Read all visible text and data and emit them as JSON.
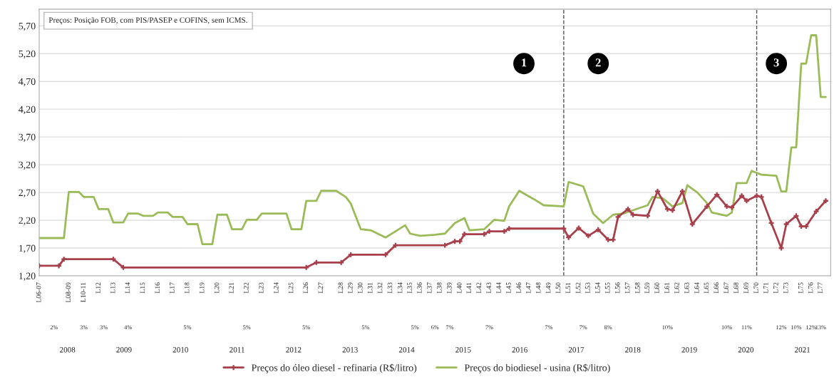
{
  "chart_data": {
    "type": "line",
    "xlim": [
      "2008-01",
      "2021-05"
    ],
    "ylim": [
      1.2,
      6.0
    ],
    "yticks": [
      {
        "value": 1.2,
        "label": "1,20"
      },
      {
        "value": 1.7,
        "label": "1,70"
      },
      {
        "value": 2.2,
        "label": "2,20"
      },
      {
        "value": 2.7,
        "label": "2,70"
      },
      {
        "value": 3.2,
        "label": "3,20"
      },
      {
        "value": 3.7,
        "label": "3,70"
      },
      {
        "value": 4.2,
        "label": "4,20"
      },
      {
        "value": 4.7,
        "label": "4,70"
      },
      {
        "value": 5.2,
        "label": "5,20"
      },
      {
        "value": 5.7,
        "label": "5,70"
      }
    ],
    "xticks": [
      {
        "value": "2008-01",
        "label": "L06-07"
      },
      {
        "value": "2008-07",
        "label": "L08-09"
      },
      {
        "value": "2008-10",
        "label": "L10-11"
      },
      {
        "value": "2009-01",
        "label": "L12"
      },
      {
        "value": "2009-04",
        "label": "L13"
      },
      {
        "value": "2009-07",
        "label": "L14"
      },
      {
        "value": "2009-10",
        "label": "L15"
      },
      {
        "value": "2010-01",
        "label": "L16"
      },
      {
        "value": "2010-04",
        "label": "L17"
      },
      {
        "value": "2010-07",
        "label": "L18"
      },
      {
        "value": "2010-10",
        "label": "L19"
      },
      {
        "value": "2011-01",
        "label": "L20"
      },
      {
        "value": "2011-04",
        "label": "L21"
      },
      {
        "value": "2011-07",
        "label": "L22"
      },
      {
        "value": "2011-10",
        "label": "L23"
      },
      {
        "value": "2012-01",
        "label": "L24"
      },
      {
        "value": "2012-04",
        "label": "L25"
      },
      {
        "value": "2012-07",
        "label": "L26"
      },
      {
        "value": "2012-10",
        "label": "L27"
      },
      {
        "value": "2013-02",
        "label": "L28"
      },
      {
        "value": "2013-04",
        "label": "L29"
      },
      {
        "value": "2013-06",
        "label": "L30"
      },
      {
        "value": "2013-08",
        "label": "L31"
      },
      {
        "value": "2013-10",
        "label": "L32"
      },
      {
        "value": "2013-12",
        "label": "L33"
      },
      {
        "value": "2014-02",
        "label": "L34"
      },
      {
        "value": "2014-04",
        "label": "L35"
      },
      {
        "value": "2014-06",
        "label": "L36"
      },
      {
        "value": "2014-08",
        "label": "L37"
      },
      {
        "value": "2014-10",
        "label": "L38"
      },
      {
        "value": "2014-12",
        "label": "L39"
      },
      {
        "value": "2015-02",
        "label": "L40"
      },
      {
        "value": "2015-04",
        "label": "L41"
      },
      {
        "value": "2015-06",
        "label": "L42"
      },
      {
        "value": "2015-08",
        "label": "L43"
      },
      {
        "value": "2015-10",
        "label": "L44"
      },
      {
        "value": "2015-12",
        "label": "L45"
      },
      {
        "value": "2016-02",
        "label": "L46"
      },
      {
        "value": "2016-04",
        "label": "L47"
      },
      {
        "value": "2016-06",
        "label": "L48"
      },
      {
        "value": "2016-08",
        "label": "L49"
      },
      {
        "value": "2016-10",
        "label": "L50"
      },
      {
        "value": "2016-12",
        "label": "L51"
      },
      {
        "value": "2017-02",
        "label": "L52"
      },
      {
        "value": "2017-04",
        "label": "L53"
      },
      {
        "value": "2017-06",
        "label": "L54"
      },
      {
        "value": "2017-08",
        "label": "L55"
      },
      {
        "value": "2017-10",
        "label": "L56"
      },
      {
        "value": "2017-12",
        "label": "L57"
      },
      {
        "value": "2018-02",
        "label": "L58"
      },
      {
        "value": "2018-04",
        "label": "L59"
      },
      {
        "value": "2018-06",
        "label": "L60"
      },
      {
        "value": "2018-08",
        "label": "L61"
      },
      {
        "value": "2018-10",
        "label": "L62"
      },
      {
        "value": "2018-12",
        "label": "L63"
      },
      {
        "value": "2019-02",
        "label": "L64"
      },
      {
        "value": "2019-04",
        "label": "L65"
      },
      {
        "value": "2019-06",
        "label": "L66"
      },
      {
        "value": "2019-08",
        "label": "L67"
      },
      {
        "value": "2019-10",
        "label": "L68"
      },
      {
        "value": "2019-12",
        "label": "L69"
      },
      {
        "value": "2020-02",
        "label": "L70"
      },
      {
        "value": "2020-04",
        "label": "L71"
      },
      {
        "value": "2020-06",
        "label": "L72"
      },
      {
        "value": "2020-08",
        "label": "L73"
      },
      {
        "value": "2020-11",
        "label": "L75"
      },
      {
        "value": "2021-01",
        "label": "L76"
      },
      {
        "value": "2021-03",
        "label": "L77"
      }
    ],
    "grid": "y",
    "legend": "bottom",
    "series": [
      {
        "name": "Preços do óleo diesel - refinaria (R$/litro)",
        "color": "#a8404c",
        "marker": "cross",
        "x": [
          "2008-01",
          "2008-05",
          "2008-06",
          "2009-04",
          "2009-06",
          "2012-07",
          "2012-09",
          "2013-02",
          "2013-04",
          "2013-11",
          "2014-01",
          "2014-11",
          "2015-01",
          "2015-02",
          "2015-03",
          "2015-07",
          "2015-08",
          "2015-11",
          "2015-12",
          "2016-11",
          "2016-12",
          "2017-02",
          "2017-04",
          "2017-06",
          "2017-08",
          "2017-09",
          "2017-10",
          "2017-12",
          "2018-01",
          "2018-04",
          "2018-06",
          "2018-08",
          "2018-09",
          "2018-11",
          "2019-01",
          "2019-04",
          "2019-06",
          "2019-08",
          "2019-09",
          "2019-11",
          "2019-12",
          "2020-02",
          "2020-03",
          "2020-05",
          "2020-07",
          "2020-08",
          "2020-10",
          "2020-11",
          "2020-12",
          "2021-02",
          "2021-04"
        ],
        "values": [
          1.38,
          1.38,
          1.5,
          1.5,
          1.35,
          1.35,
          1.44,
          1.44,
          1.58,
          1.58,
          1.75,
          1.75,
          1.82,
          1.82,
          1.95,
          1.95,
          2.0,
          2.0,
          2.05,
          2.05,
          1.89,
          2.06,
          1.92,
          2.03,
          1.85,
          1.85,
          2.26,
          2.4,
          2.3,
          2.28,
          2.72,
          2.4,
          2.38,
          2.72,
          2.13,
          2.45,
          2.66,
          2.45,
          2.43,
          2.64,
          2.55,
          2.64,
          2.62,
          2.15,
          1.7,
          2.13,
          2.28,
          2.09,
          2.09,
          2.36,
          2.55
        ]
      },
      {
        "name": "Preços do biodiesel - usina (R$/litro)",
        "color": "#9bbb59",
        "marker": "none",
        "x": [
          "2008-01",
          "2008-06",
          "2008-07",
          "2008-09",
          "2008-10",
          "2008-12",
          "2009-01",
          "2009-03",
          "2009-04",
          "2009-06",
          "2009-07",
          "2009-09",
          "2009-10",
          "2009-12",
          "2010-01",
          "2010-03",
          "2010-04",
          "2010-06",
          "2010-07",
          "2010-09",
          "2010-10",
          "2010-12",
          "2011-01",
          "2011-03",
          "2011-04",
          "2011-06",
          "2011-07",
          "2011-09",
          "2011-10",
          "2012-03",
          "2012-04",
          "2012-06",
          "2012-07",
          "2012-09",
          "2012-10",
          "2013-01",
          "2013-03",
          "2013-04",
          "2013-06",
          "2013-08",
          "2013-11",
          "2014-01",
          "2014-03",
          "2014-04",
          "2014-06",
          "2014-09",
          "2014-11",
          "2015-01",
          "2015-03",
          "2015-04",
          "2015-07",
          "2015-09",
          "2015-11",
          "2015-12",
          "2016-02",
          "2016-05",
          "2016-07",
          "2016-11",
          "2016-12",
          "2017-03",
          "2017-05",
          "2017-07",
          "2017-09",
          "2017-11",
          "2018-01",
          "2018-04",
          "2018-05",
          "2018-07",
          "2018-09",
          "2018-11",
          "2018-12",
          "2019-02",
          "2019-04",
          "2019-05",
          "2019-08",
          "2019-09",
          "2019-10",
          "2019-12",
          "2020-01",
          "2020-03",
          "2020-06",
          "2020-07",
          "2020-08",
          "2020-09",
          "2020-10",
          "2020-11",
          "2020-12",
          "2021-01",
          "2021-02",
          "2021-03",
          "2021-04"
        ],
        "values": [
          1.88,
          1.88,
          2.71,
          2.71,
          2.62,
          2.62,
          2.4,
          2.4,
          2.16,
          2.16,
          2.32,
          2.32,
          2.28,
          2.28,
          2.34,
          2.34,
          2.26,
          2.26,
          2.13,
          2.13,
          1.77,
          1.77,
          2.3,
          2.3,
          2.04,
          2.04,
          2.21,
          2.21,
          2.32,
          2.32,
          2.04,
          2.04,
          2.55,
          2.55,
          2.73,
          2.73,
          2.62,
          2.5,
          2.04,
          2.02,
          1.89,
          2.0,
          2.11,
          1.96,
          1.92,
          1.94,
          1.96,
          2.15,
          2.24,
          2.02,
          2.04,
          2.21,
          2.19,
          2.45,
          2.73,
          2.58,
          2.47,
          2.45,
          2.89,
          2.81,
          2.32,
          2.15,
          2.3,
          2.32,
          2.38,
          2.47,
          2.62,
          2.6,
          2.45,
          2.51,
          2.83,
          2.7,
          2.51,
          2.34,
          2.28,
          2.34,
          2.87,
          2.87,
          3.09,
          3.02,
          3.0,
          2.72,
          2.72,
          3.51,
          3.51,
          5.02,
          5.02,
          5.53,
          5.53,
          4.42,
          4.42
        ]
      }
    ],
    "ref_lines": [
      {
        "axis": "x",
        "value": "2016-11",
        "color": "#555555",
        "line_style": "dashed"
      },
      {
        "axis": "x",
        "value": "2020-02",
        "color": "#555555",
        "line_style": "dashed"
      }
    ],
    "annotations": [
      "Preços: Posição FOB, com PIS/PASEP e COFINS, sem ICMS.",
      {
        "text": "1",
        "x": "2016-03",
        "y": 5.02
      },
      {
        "text": "2",
        "x": "2017-06",
        "y": 5.02
      },
      {
        "text": "3",
        "x": "2020-06",
        "y": 5.02
      },
      "2008",
      "2009",
      "2010",
      "2011",
      "2012",
      "2013",
      "2014",
      "2015",
      "2016",
      "2017",
      "2018",
      "2019",
      "2020",
      "2021"
    ],
    "x2lim": [
      "2008-01",
      "2021-05"
    ],
    "x2ticks": [
      {
        "value": "2008-04",
        "label": "2%"
      },
      {
        "value": "2008-10",
        "label": "3%"
      },
      {
        "value": "2009-02",
        "label": "3%"
      },
      {
        "value": "2009-07",
        "label": "4%"
      },
      {
        "value": "2010-07",
        "label": "5%"
      },
      {
        "value": "2011-07",
        "label": "5%"
      },
      {
        "value": "2012-07",
        "label": "5%"
      },
      {
        "value": "2013-07",
        "label": "5%"
      },
      {
        "value": "2014-05",
        "label": "5%"
      },
      {
        "value": "2014-09",
        "label": "6%"
      },
      {
        "value": "2014-12",
        "label": "7%"
      },
      {
        "value": "2015-08",
        "label": "7%"
      },
      {
        "value": "2016-08",
        "label": "7%"
      },
      {
        "value": "2017-03",
        "label": "7%"
      },
      {
        "value": "2017-08",
        "label": "8%"
      },
      {
        "value": "2018-08",
        "label": "10%"
      },
      {
        "value": "2019-08",
        "label": "10%"
      },
      {
        "value": "2019-12",
        "label": "11%"
      },
      {
        "value": "2020-07",
        "label": "12%"
      },
      {
        "value": "2020-10",
        "label": "10%"
      },
      {
        "value": "2021-01",
        "label": "12%"
      },
      {
        "value": "2021-03",
        "label": "13%"
      }
    ]
  }
}
